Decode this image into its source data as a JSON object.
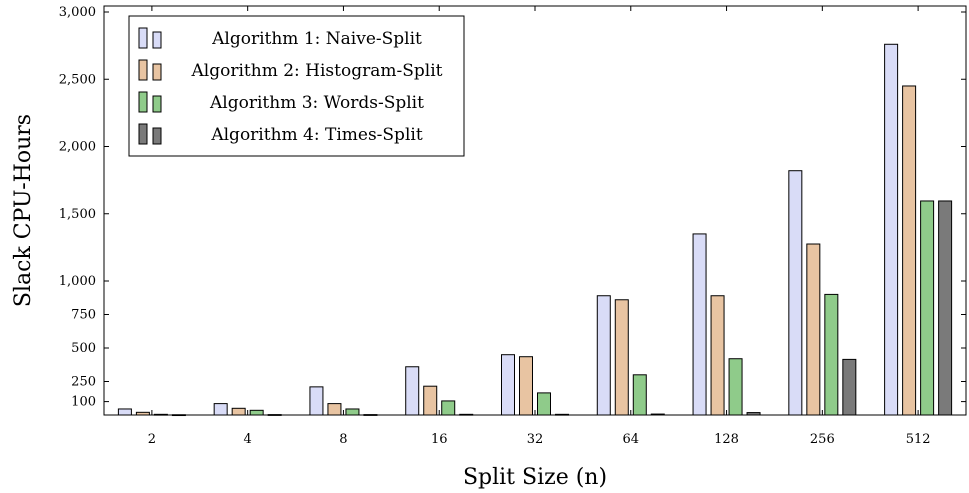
{
  "chart_data": {
    "type": "bar",
    "title": "",
    "xlabel": "Split Size (n)",
    "ylabel": "Slack CPU-Hours",
    "categories": [
      "2",
      "4",
      "8",
      "16",
      "32",
      "64",
      "128",
      "256",
      "512"
    ],
    "y_ticks": [
      100,
      250,
      500,
      750,
      1000,
      1500,
      2000,
      2500,
      3000
    ],
    "y_tick_labels": [
      "100",
      "250",
      "500",
      "750",
      "1,000",
      "1,500",
      "2,000",
      "2,500",
      "3,000"
    ],
    "ylim": [
      0,
      3050
    ],
    "y_scale": "piecewise: 0–1000 expanded, 1000–3000 compressed",
    "grid": false,
    "legend_position": "top-left",
    "series": [
      {
        "name": "Algorithm 1: Naive-Split",
        "color": "#d9dcf7",
        "values": [
          45,
          85,
          210,
          360,
          450,
          890,
          1350,
          1820,
          2760
        ]
      },
      {
        "name": "Algorithm 2: Histogram-Split",
        "color": "#e8c4a2",
        "values": [
          20,
          50,
          85,
          215,
          435,
          860,
          890,
          1275,
          2450
        ]
      },
      {
        "name": "Algorithm 3: Words-Split",
        "color": "#8fcb8a",
        "values": [
          5,
          35,
          45,
          105,
          165,
          300,
          420,
          900,
          1595
        ]
      },
      {
        "name": "Algorithm 4: Times-Split",
        "color": "#7a7a7a",
        "values": [
          2,
          3,
          3,
          5,
          5,
          7,
          18,
          415,
          1595
        ]
      }
    ]
  }
}
